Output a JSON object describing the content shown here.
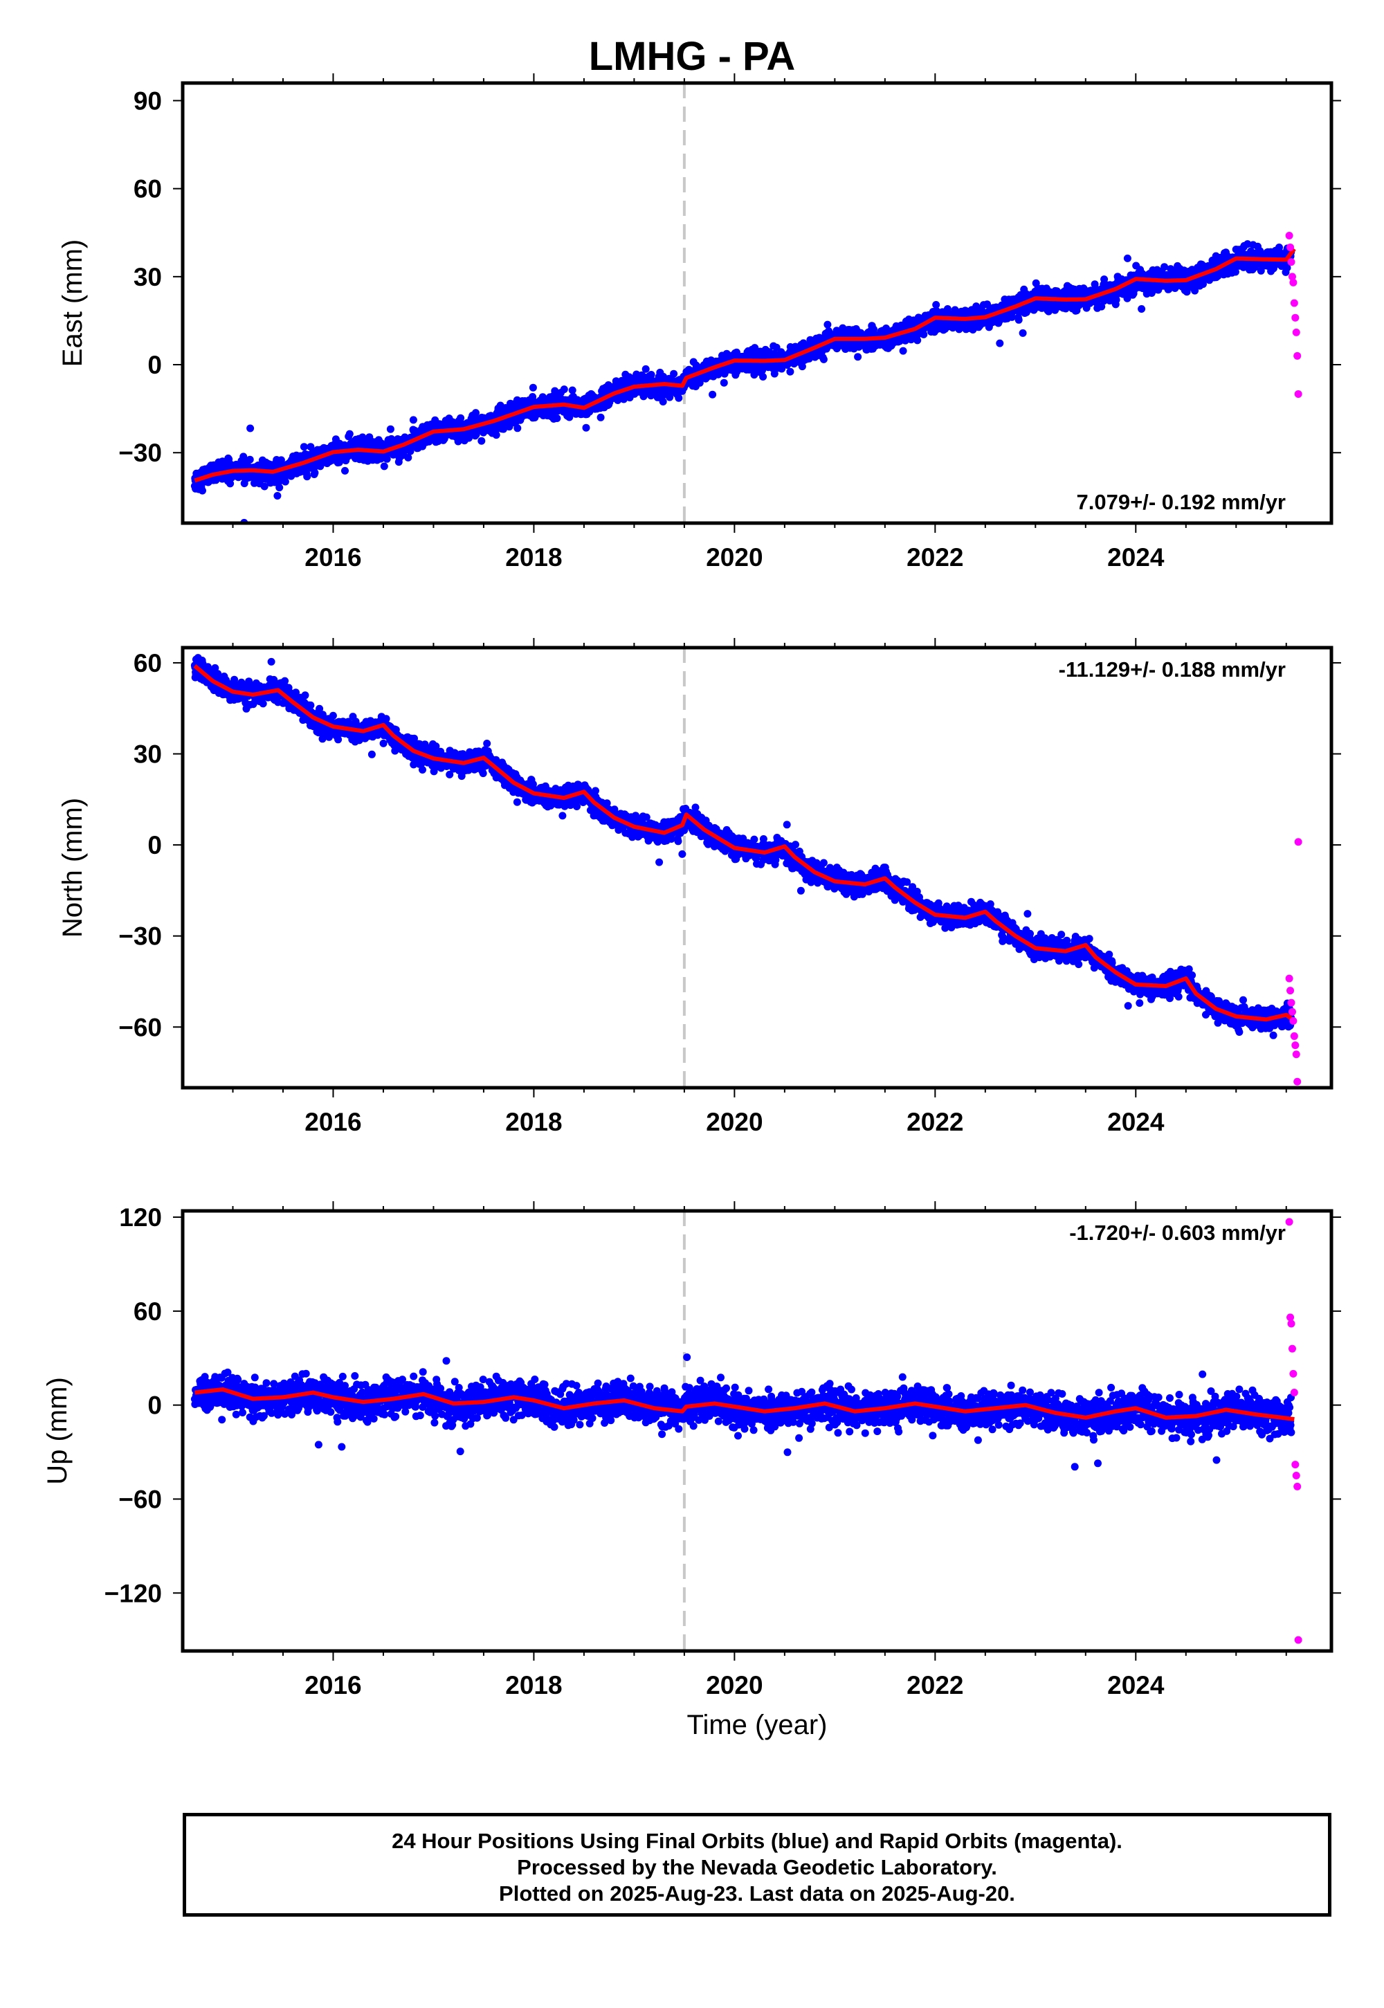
{
  "title": "LMHG - PA",
  "colors": {
    "final_orbits": "#0000ff",
    "rapid_orbits": "#ff00ff",
    "model": "#ff0000",
    "event_line": "#c8c8c8"
  },
  "chart_data": [
    {
      "type": "scatter",
      "component": "East",
      "ylabel": "East (mm)",
      "xlabel": "",
      "ylim": [
        -54,
        96
      ],
      "yticks": [
        90,
        60,
        30,
        0,
        -30
      ],
      "ytick_labels": [
        "90",
        "60",
        "30",
        "0",
        "−30"
      ],
      "xlim": [
        2014.5,
        2025.95
      ],
      "xticks": [
        2016,
        2018,
        2020,
        2022,
        2024
      ],
      "xtick_labels": [
        "2016",
        "2018",
        "2020",
        "2022",
        "2024"
      ],
      "rate_text": "7.079+/- 0.192 mm/yr",
      "rate_position": "bottom-right",
      "event_x": 2019.5,
      "model": {
        "x": [
          2014.62,
          2014.8,
          2015.0,
          2015.2,
          2015.4,
          2015.7,
          2016.0,
          2016.25,
          2016.5,
          2016.7,
          2017.0,
          2017.3,
          2017.6,
          2018.0,
          2018.3,
          2018.5,
          2018.8,
          2019.0,
          2019.3,
          2019.48,
          2019.52,
          2019.8,
          2020.0,
          2020.3,
          2020.5,
          2020.8,
          2021.0,
          2021.3,
          2021.5,
          2021.8,
          2022.0,
          2022.3,
          2022.5,
          2022.8,
          2023.0,
          2023.3,
          2023.5,
          2023.8,
          2024.0,
          2024.3,
          2024.5,
          2024.8,
          2025.0,
          2025.3,
          2025.5,
          2025.58
        ],
        "y": [
          -39.5,
          -37.5,
          -36.2,
          -36.0,
          -36.5,
          -33.5,
          -29.8,
          -29.0,
          -29.6,
          -27.3,
          -22.8,
          -22.0,
          -19.2,
          -14.4,
          -13.6,
          -14.7,
          -9.8,
          -7.5,
          -6.6,
          -7.2,
          -4.5,
          -0.9,
          1.4,
          1.3,
          1.6,
          5.8,
          8.8,
          8.8,
          9.2,
          12.2,
          16.0,
          15.6,
          16.2,
          19.8,
          22.6,
          22.2,
          22.3,
          25.8,
          29.2,
          28.6,
          28.8,
          32.6,
          36.2,
          35.9,
          35.8,
          39.5
        ]
      },
      "final_noise_mm": 1.8,
      "rapid": {
        "x": [
          2025.53,
          2025.54,
          2025.55,
          2025.56,
          2025.57,
          2025.58,
          2025.59,
          2025.6,
          2025.61,
          2025.62
        ],
        "y": [
          44,
          40,
          35,
          30,
          28,
          21,
          16,
          11,
          3,
          -10
        ]
      }
    },
    {
      "type": "scatter",
      "component": "North",
      "ylabel": "North (mm)",
      "xlabel": "",
      "ylim": [
        -80,
        65
      ],
      "yticks": [
        60,
        30,
        0,
        -30,
        -60
      ],
      "ytick_labels": [
        "60",
        "30",
        "0",
        "−30",
        "−60"
      ],
      "xlim": [
        2014.5,
        2025.95
      ],
      "xticks": [
        2016,
        2018,
        2020,
        2022,
        2024
      ],
      "xtick_labels": [
        "2016",
        "2018",
        "2020",
        "2022",
        "2024"
      ],
      "rate_text": "-11.129+/- 0.188 mm/yr",
      "rate_position": "top-right",
      "event_x": 2019.5,
      "model": {
        "x": [
          2014.62,
          2014.8,
          2015.0,
          2015.2,
          2015.45,
          2015.6,
          2015.8,
          2016.0,
          2016.3,
          2016.5,
          2016.6,
          2016.8,
          2017.0,
          2017.3,
          2017.5,
          2017.6,
          2017.8,
          2018.0,
          2018.3,
          2018.5,
          2018.6,
          2018.8,
          2019.0,
          2019.3,
          2019.48,
          2019.52,
          2019.7,
          2020.0,
          2020.3,
          2020.5,
          2020.6,
          2020.8,
          2021.0,
          2021.3,
          2021.5,
          2021.6,
          2021.8,
          2022.0,
          2022.3,
          2022.5,
          2022.6,
          2022.8,
          2023.0,
          2023.3,
          2023.5,
          2023.6,
          2023.8,
          2024.0,
          2024.3,
          2024.5,
          2024.6,
          2024.8,
          2025.0,
          2025.3,
          2025.5,
          2025.58
        ],
        "y": [
          59,
          54,
          50.5,
          49.5,
          51,
          47,
          42,
          39,
          37.5,
          39.5,
          36,
          31,
          28.5,
          27,
          28.7,
          26,
          20.5,
          17,
          15.5,
          17.5,
          14,
          9,
          6,
          4,
          6.5,
          10,
          5,
          -1,
          -2.5,
          -0.5,
          -4,
          -9,
          -12,
          -13,
          -11,
          -14,
          -19,
          -23,
          -24,
          -22,
          -25,
          -30,
          -34,
          -35,
          -33,
          -37,
          -42,
          -46,
          -46.5,
          -44,
          -49,
          -54,
          -56.5,
          -57.5,
          -56,
          -58
        ]
      },
      "final_noise_mm": 1.7,
      "rapid": {
        "x": [
          2025.53,
          2025.54,
          2025.55,
          2025.56,
          2025.57,
          2025.58,
          2025.59,
          2025.6,
          2025.61,
          2025.62
        ],
        "y": [
          -44,
          -48,
          -52,
          -55,
          -58,
          -63,
          -66,
          -69,
          -78,
          1
        ]
      }
    },
    {
      "type": "scatter",
      "component": "Up",
      "ylabel": "Up (mm)",
      "xlabel": "Time (year)",
      "ylim": [
        -157,
        124
      ],
      "yticks": [
        120,
        60,
        0,
        -60,
        -120
      ],
      "ytick_labels": [
        "120",
        "60",
        "0",
        "−60",
        "−120"
      ],
      "xlim": [
        2014.5,
        2025.95
      ],
      "xticks": [
        2016,
        2018,
        2020,
        2022,
        2024
      ],
      "xtick_labels": [
        "2016",
        "2018",
        "2020",
        "2022",
        "2024"
      ],
      "rate_text": "-1.720+/- 0.603 mm/yr",
      "rate_position": "top-right",
      "event_x": 2019.5,
      "model": {
        "x": [
          2014.62,
          2014.9,
          2015.2,
          2015.5,
          2015.8,
          2016.0,
          2016.3,
          2016.6,
          2016.9,
          2017.2,
          2017.5,
          2017.8,
          2018.0,
          2018.3,
          2018.6,
          2018.9,
          2019.2,
          2019.48,
          2019.52,
          2019.8,
          2020.0,
          2020.3,
          2020.6,
          2020.9,
          2021.2,
          2021.5,
          2021.8,
          2022.0,
          2022.3,
          2022.6,
          2022.9,
          2023.2,
          2023.5,
          2023.8,
          2024.0,
          2024.3,
          2024.6,
          2024.9,
          2025.2,
          2025.58
        ],
        "y": [
          8,
          10,
          4,
          5,
          8,
          5,
          2,
          4,
          7,
          1,
          2,
          5,
          3,
          -2,
          1,
          3,
          -2,
          -4,
          -1,
          1,
          -1,
          -4,
          -2,
          1,
          -4,
          -2,
          1,
          -1,
          -4,
          -2,
          0,
          -5,
          -8,
          -4,
          -2,
          -8,
          -7,
          -3,
          -6,
          -9
        ]
      },
      "final_noise_mm": 5.5,
      "rapid": {
        "x": [
          2025.53,
          2025.54,
          2025.55,
          2025.56,
          2025.57,
          2025.58,
          2025.59,
          2025.6,
          2025.61,
          2025.62
        ],
        "y": [
          117,
          56,
          52,
          36,
          20,
          8,
          -38,
          -45,
          -52,
          -150
        ]
      }
    }
  ],
  "footer": {
    "line1": "24 Hour Positions Using Final Orbits (blue) and Rapid Orbits (magenta).",
    "line2": "Processed by the Nevada Geodetic Laboratory.",
    "line3": "Plotted on 2025-Aug-23. Last data on 2025-Aug-20."
  }
}
